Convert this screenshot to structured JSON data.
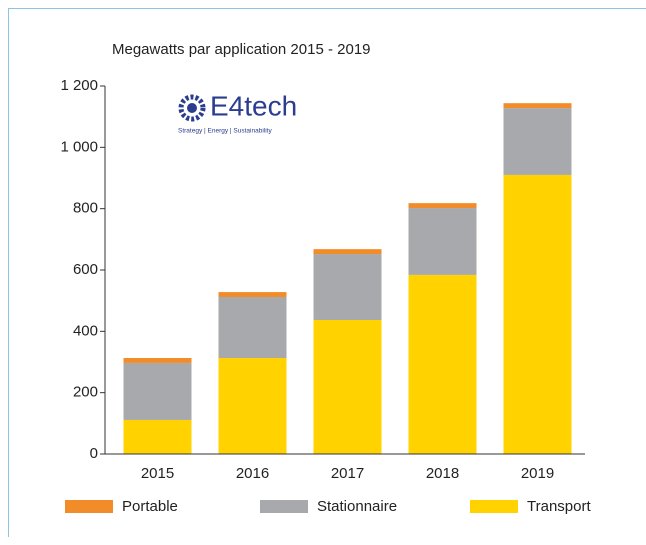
{
  "chart_data": {
    "type": "bar",
    "stacked": true,
    "title": "Megawatts par application 2015 - 2019",
    "logo_text": "E4tech",
    "logo_tagline": "Strategy | Energy | Sustainability",
    "categories": [
      "2015",
      "2016",
      "2017",
      "2018",
      "2019"
    ],
    "series": [
      {
        "name": "Transport",
        "color": "#ffd200",
        "values": [
          111,
          313,
          437,
          584,
          910
        ]
      },
      {
        "name": "Stationnaire",
        "color": "#a8a9ad",
        "values": [
          186,
          199,
          215,
          218,
          218
        ]
      },
      {
        "name": "Portable",
        "color": "#f28c28",
        "values": [
          16,
          16,
          16,
          16,
          16
        ]
      }
    ],
    "ylim": [
      0,
      1200
    ],
    "yticks": [
      0,
      200,
      400,
      600,
      800,
      {
        "value": 1000,
        "label": "1 000"
      },
      {
        "value": 1200,
        "label": "1 200"
      }
    ],
    "grid": false,
    "legend": "bottom"
  }
}
